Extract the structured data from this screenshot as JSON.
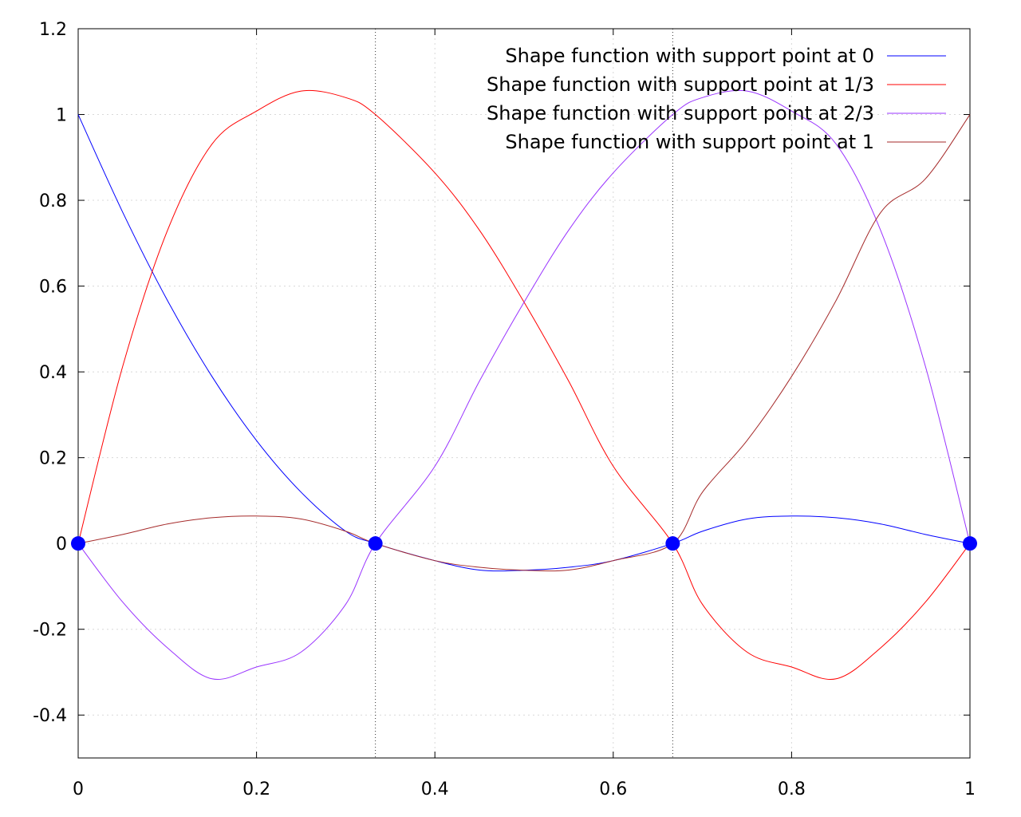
{
  "chart_data": {
    "type": "line",
    "title": "",
    "xlabel": "",
    "ylabel": "",
    "xlim": [
      0,
      1
    ],
    "ylim": [
      -0.5,
      1.2
    ],
    "x_ticks": [
      "0",
      "0.2",
      "0.4",
      "0.6",
      "0.8",
      "1"
    ],
    "x_tick_values": [
      0,
      0.2,
      0.4,
      0.6,
      0.8,
      1
    ],
    "y_ticks": [
      "-0.4",
      "-0.2",
      "0",
      "0.2",
      "0.4",
      "0.6",
      "0.8",
      "1",
      "1.2"
    ],
    "y_tick_values": [
      -0.4,
      -0.2,
      0,
      0.2,
      0.4,
      0.6,
      0.8,
      1,
      1.2
    ],
    "grid": true,
    "vertical_reference_lines": [
      0.3333,
      0.6667
    ],
    "legend_position": "top-right",
    "series": [
      {
        "name": "Shape function with support point at 0",
        "color": "#0000ff",
        "x": [
          0,
          0.05,
          0.1,
          0.15,
          0.2,
          0.25,
          0.3,
          0.3333,
          0.4,
          0.45,
          0.5,
          0.55,
          0.6,
          0.6667,
          0.7,
          0.75,
          0.8,
          0.85,
          0.9,
          0.95,
          1
        ],
        "y": [
          1,
          0.7719,
          0.567,
          0.3894,
          0.24,
          0.1195,
          0.0285,
          0,
          -0.04,
          -0.0619,
          -0.0625,
          -0.0555,
          -0.04,
          0,
          0.0285,
          0.057,
          0.064,
          0.06,
          0.0455,
          0.0211,
          0
        ]
      },
      {
        "name": "Shape function with support point at 1/3",
        "color": "#ff0000",
        "x": [
          0,
          0.05,
          0.1,
          0.15,
          0.2,
          0.25,
          0.3,
          0.3333,
          0.4,
          0.45,
          0.5,
          0.55,
          0.6,
          0.6667,
          0.7,
          0.75,
          0.8,
          0.85,
          0.9,
          0.95,
          1
        ],
        "y": [
          0,
          0.4134,
          0.729,
          0.9308,
          1.008,
          1.0547,
          1.0395,
          1,
          0.864,
          0.7302,
          0.5625,
          0.3786,
          0.18,
          0,
          -0.1418,
          -0.2531,
          -0.288,
          -0.3155,
          -0.243,
          -0.1368,
          0
        ]
      },
      {
        "name": "Shape function with support point at 2/3",
        "color": "#9933ff",
        "x": [
          0,
          0.05,
          0.1,
          0.15,
          0.2,
          0.25,
          0.3,
          0.3333,
          0.4,
          0.45,
          0.5,
          0.55,
          0.6,
          0.6667,
          0.7,
          0.75,
          0.8,
          0.85,
          0.9,
          0.95,
          1
        ],
        "y": [
          0,
          -0.1368,
          -0.243,
          -0.3155,
          -0.288,
          -0.2531,
          -0.1418,
          0,
          0.18,
          0.3786,
          0.5625,
          0.7302,
          0.864,
          1,
          1.0395,
          1.0547,
          1.008,
          0.9308,
          0.729,
          0.4134,
          0
        ]
      },
      {
        "name": "Shape function with support point at 1",
        "color": "#a52a2a",
        "x": [
          0,
          0.05,
          0.1,
          0.15,
          0.2,
          0.25,
          0.3,
          0.3333,
          0.4,
          0.45,
          0.5,
          0.55,
          0.6,
          0.6667,
          0.7,
          0.75,
          0.8,
          0.85,
          0.9,
          0.95,
          1
        ],
        "y": [
          0,
          0.0211,
          0.0455,
          0.06,
          0.064,
          0.057,
          0.0285,
          0,
          -0.04,
          -0.0555,
          -0.0625,
          -0.0619,
          -0.04,
          0,
          0.1195,
          0.24,
          0.3894,
          0.567,
          0.7719,
          0.85,
          1
        ]
      }
    ],
    "support_points": {
      "color": "#0000ff",
      "x": [
        0,
        0.3333,
        0.6667,
        1
      ],
      "y": [
        0,
        0,
        0,
        0
      ]
    }
  }
}
